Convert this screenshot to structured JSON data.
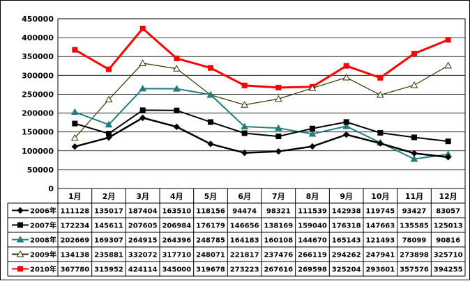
{
  "chart_data": {
    "type": "line",
    "categories": [
      "1月",
      "2月",
      "3月",
      "4月",
      "5月",
      "6月",
      "7月",
      "8月",
      "9月",
      "10月",
      "11月",
      "12月"
    ],
    "ylim": [
      0,
      450000
    ],
    "yticks": [
      "0",
      "50000",
      "100000",
      "150000",
      "200000",
      "250000",
      "300000",
      "350000",
      "400000",
      "450000"
    ],
    "grid": true,
    "legend": "data-table-below",
    "series": [
      {
        "name": "2006年",
        "color": "#000000",
        "marker": "diamond",
        "values": [
          111128,
          135017,
          187404,
          163510,
          118156,
          94474,
          98321,
          111539,
          142938,
          119745,
          93427,
          83057
        ]
      },
      {
        "name": "2007年",
        "color": "#000000",
        "marker": "square",
        "values": [
          172234,
          145611,
          207605,
          206984,
          176179,
          146656,
          138169,
          159040,
          176318,
          147663,
          135585,
          125013
        ]
      },
      {
        "name": "2008年",
        "color": "#1f7f7f",
        "marker": "triangle",
        "values": [
          202669,
          169307,
          264915,
          264396,
          248785,
          164183,
          160108,
          144670,
          165143,
          121493,
          78099,
          90816
        ]
      },
      {
        "name": "2009年",
        "color": "#333300",
        "marker": "open-triangle",
        "values": [
          134138,
          235881,
          332072,
          317710,
          248071,
          221817,
          237476,
          266119,
          294262,
          247941,
          273898,
          325710
        ]
      },
      {
        "name": "2010年",
        "color": "#ff0000",
        "marker": "square",
        "values": [
          367780,
          315952,
          424114,
          345000,
          319678,
          273223,
          267616,
          269598,
          325204,
          293601,
          357576,
          394255
        ]
      }
    ]
  }
}
